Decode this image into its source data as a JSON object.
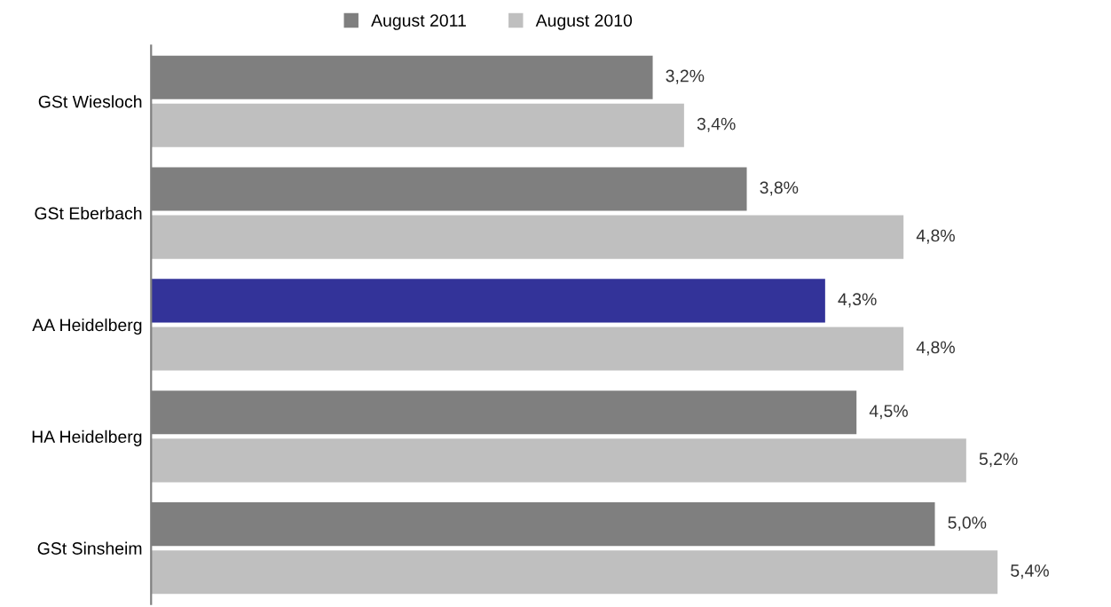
{
  "chart_data": {
    "type": "bar",
    "orientation": "horizontal",
    "categories": [
      "GSt Wiesloch",
      "GSt Eberbach",
      "AA Heidelberg",
      "HA Heidelberg",
      "GSt Sinsheim"
    ],
    "series": [
      {
        "name": "August 2011",
        "color": "#7f7f7f",
        "colors": [
          "#7f7f7f",
          "#7f7f7f",
          "#333399",
          "#7f7f7f",
          "#7f7f7f"
        ],
        "values": [
          3.2,
          3.8,
          4.3,
          4.5,
          5.0
        ],
        "value_labels": [
          "3,2%",
          "3,8%",
          "4,3%",
          "4,5%",
          "5,0%"
        ]
      },
      {
        "name": "August 2010",
        "color": "#bfbfbf",
        "values": [
          3.4,
          4.8,
          4.8,
          5.2,
          5.4
        ],
        "value_labels": [
          "3,4%",
          "4,8%",
          "4,8%",
          "5,2%",
          "5,4%"
        ]
      }
    ],
    "tick_labels": "y",
    "legend": "top",
    "grid": false
  }
}
